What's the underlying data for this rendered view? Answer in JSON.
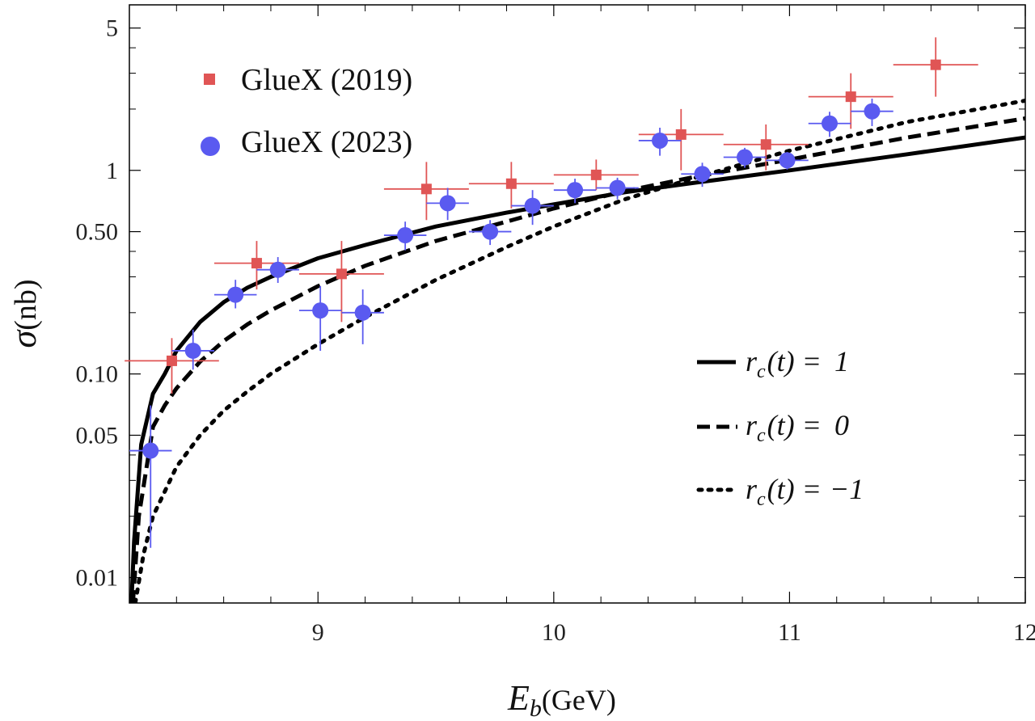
{
  "chart_data": {
    "type": "scatter",
    "xlabel": "E_b(GeV)",
    "xlabel_main": "E",
    "xlabel_sub": "b",
    "xlabel_unit": "(GeV)",
    "ylabel": "σ(nb)",
    "ylabel_symbol": "σ",
    "ylabel_unit": "(nb)",
    "yscale": "log",
    "xlim": [
      8.2,
      12.0
    ],
    "ylim": [
      0.0075,
      6.5
    ],
    "x_ticks": [
      9,
      10,
      11,
      12
    ],
    "x_tick_labels": [
      "9",
      "10",
      "11",
      "12"
    ],
    "x_minor_ticks": [
      8.4,
      8.6,
      8.8,
      9.2,
      9.4,
      9.6,
      9.8,
      10.2,
      10.4,
      10.6,
      10.8,
      11.2,
      11.4,
      11.6,
      11.8
    ],
    "y_ticks": [
      0.01,
      0.05,
      0.1,
      0.5,
      1,
      5
    ],
    "y_tick_labels": [
      "0.01",
      "0.05",
      "0.10",
      "0.50",
      "1",
      "5"
    ],
    "y_minor_ticks": [
      0.02,
      0.03,
      0.04,
      0.2,
      0.3,
      0.4,
      2,
      3,
      4
    ],
    "series": [
      {
        "name": "GlueX (2019)",
        "marker": "square",
        "color": "#e05555",
        "points": [
          {
            "x": 8.38,
            "y": 0.116,
            "xerr": 0.2,
            "ylo": 0.08,
            "yhi": 0.15
          },
          {
            "x": 8.74,
            "y": 0.35,
            "xerr": 0.18,
            "ylo": 0.26,
            "yhi": 0.45
          },
          {
            "x": 9.1,
            "y": 0.31,
            "xerr": 0.18,
            "ylo": 0.18,
            "yhi": 0.45
          },
          {
            "x": 9.46,
            "y": 0.81,
            "xerr": 0.18,
            "ylo": 0.57,
            "yhi": 1.1
          },
          {
            "x": 9.82,
            "y": 0.86,
            "xerr": 0.18,
            "ylo": 0.65,
            "yhi": 1.1
          },
          {
            "x": 10.18,
            "y": 0.95,
            "xerr": 0.18,
            "ylo": 0.8,
            "yhi": 1.13
          },
          {
            "x": 10.54,
            "y": 1.5,
            "xerr": 0.18,
            "ylo": 1.0,
            "yhi": 2.0
          },
          {
            "x": 10.9,
            "y": 1.34,
            "xerr": 0.18,
            "ylo": 1.0,
            "yhi": 1.68
          },
          {
            "x": 11.26,
            "y": 2.3,
            "xerr": 0.18,
            "ylo": 1.6,
            "yhi": 3.0
          },
          {
            "x": 11.62,
            "y": 3.3,
            "xerr": 0.18,
            "ylo": 2.3,
            "yhi": 4.5
          }
        ]
      },
      {
        "name": "GlueX (2023)",
        "marker": "circle",
        "color": "#5a5af0",
        "points": [
          {
            "x": 8.29,
            "y": 0.042,
            "xerr": 0.09,
            "ylo": 0.014,
            "yhi": 0.07
          },
          {
            "x": 8.47,
            "y": 0.13,
            "xerr": 0.09,
            "ylo": 0.105,
            "yhi": 0.165
          },
          {
            "x": 8.65,
            "y": 0.245,
            "xerr": 0.09,
            "ylo": 0.21,
            "yhi": 0.29
          },
          {
            "x": 8.83,
            "y": 0.325,
            "xerr": 0.09,
            "ylo": 0.28,
            "yhi": 0.375
          },
          {
            "x": 9.01,
            "y": 0.205,
            "xerr": 0.09,
            "ylo": 0.13,
            "yhi": 0.27
          },
          {
            "x": 9.19,
            "y": 0.2,
            "xerr": 0.09,
            "ylo": 0.14,
            "yhi": 0.26
          },
          {
            "x": 9.37,
            "y": 0.48,
            "xerr": 0.09,
            "ylo": 0.405,
            "yhi": 0.56
          },
          {
            "x": 9.55,
            "y": 0.69,
            "xerr": 0.09,
            "ylo": 0.57,
            "yhi": 0.82
          },
          {
            "x": 9.73,
            "y": 0.5,
            "xerr": 0.09,
            "ylo": 0.43,
            "yhi": 0.57
          },
          {
            "x": 9.91,
            "y": 0.67,
            "xerr": 0.09,
            "ylo": 0.54,
            "yhi": 0.8
          },
          {
            "x": 10.09,
            "y": 0.8,
            "xerr": 0.09,
            "ylo": 0.69,
            "yhi": 0.91
          },
          {
            "x": 10.27,
            "y": 0.82,
            "xerr": 0.09,
            "ylo": 0.72,
            "yhi": 0.92
          },
          {
            "x": 10.45,
            "y": 1.4,
            "xerr": 0.09,
            "ylo": 1.18,
            "yhi": 1.62
          },
          {
            "x": 10.63,
            "y": 0.96,
            "xerr": 0.09,
            "ylo": 0.83,
            "yhi": 1.09
          },
          {
            "x": 10.81,
            "y": 1.16,
            "xerr": 0.09,
            "ylo": 1.03,
            "yhi": 1.29
          },
          {
            "x": 10.99,
            "y": 1.12,
            "xerr": 0.09,
            "ylo": 1.01,
            "yhi": 1.23
          },
          {
            "x": 11.17,
            "y": 1.7,
            "xerr": 0.09,
            "ylo": 1.46,
            "yhi": 1.94
          },
          {
            "x": 11.35,
            "y": 1.95,
            "xerr": 0.09,
            "ylo": 1.65,
            "yhi": 2.25
          }
        ]
      }
    ],
    "curves": [
      {
        "name": "r_c(t) = 1",
        "label_value": "1",
        "style": "solid",
        "x": [
          8.209,
          8.22,
          8.25,
          8.3,
          8.35,
          8.4,
          8.5,
          8.6,
          8.7,
          8.8,
          9.0,
          9.2,
          9.5,
          9.8,
          10.0,
          10.3,
          10.6,
          11.0,
          11.5,
          12.0
        ],
        "y": [
          0.0075,
          0.015,
          0.045,
          0.08,
          0.1,
          0.13,
          0.18,
          0.225,
          0.265,
          0.3,
          0.37,
          0.43,
          0.53,
          0.62,
          0.68,
          0.78,
          0.87,
          1.0,
          1.2,
          1.45
        ]
      },
      {
        "name": "r_c(t) = 0",
        "label_value": "0",
        "style": "dashed",
        "x": [
          8.215,
          8.24,
          8.3,
          8.35,
          8.4,
          8.5,
          8.6,
          8.7,
          8.8,
          9.0,
          9.2,
          9.5,
          9.8,
          10.0,
          10.3,
          10.6,
          11.0,
          11.5,
          12.0
        ],
        "y": [
          0.0075,
          0.02,
          0.055,
          0.07,
          0.085,
          0.115,
          0.145,
          0.175,
          0.205,
          0.27,
          0.34,
          0.45,
          0.56,
          0.65,
          0.79,
          0.93,
          1.13,
          1.45,
          1.8
        ]
      },
      {
        "name": "r_c(t) = -1",
        "label_value": "−1",
        "style": "dotted",
        "x": [
          8.225,
          8.26,
          8.3,
          8.4,
          8.5,
          8.6,
          8.7,
          8.8,
          9.0,
          9.2,
          9.5,
          9.8,
          10.0,
          10.3,
          10.6,
          11.0,
          11.5,
          12.0
        ],
        "y": [
          0.0075,
          0.013,
          0.02,
          0.035,
          0.05,
          0.066,
          0.082,
          0.1,
          0.14,
          0.19,
          0.29,
          0.42,
          0.53,
          0.72,
          0.92,
          1.25,
          1.73,
          2.2
        ]
      }
    ],
    "legend_curves_prefix": "r",
    "legend_curves_sub": "c",
    "legend_curves_mid": "(t) =",
    "legend_position": "left for data, right for curves"
  }
}
